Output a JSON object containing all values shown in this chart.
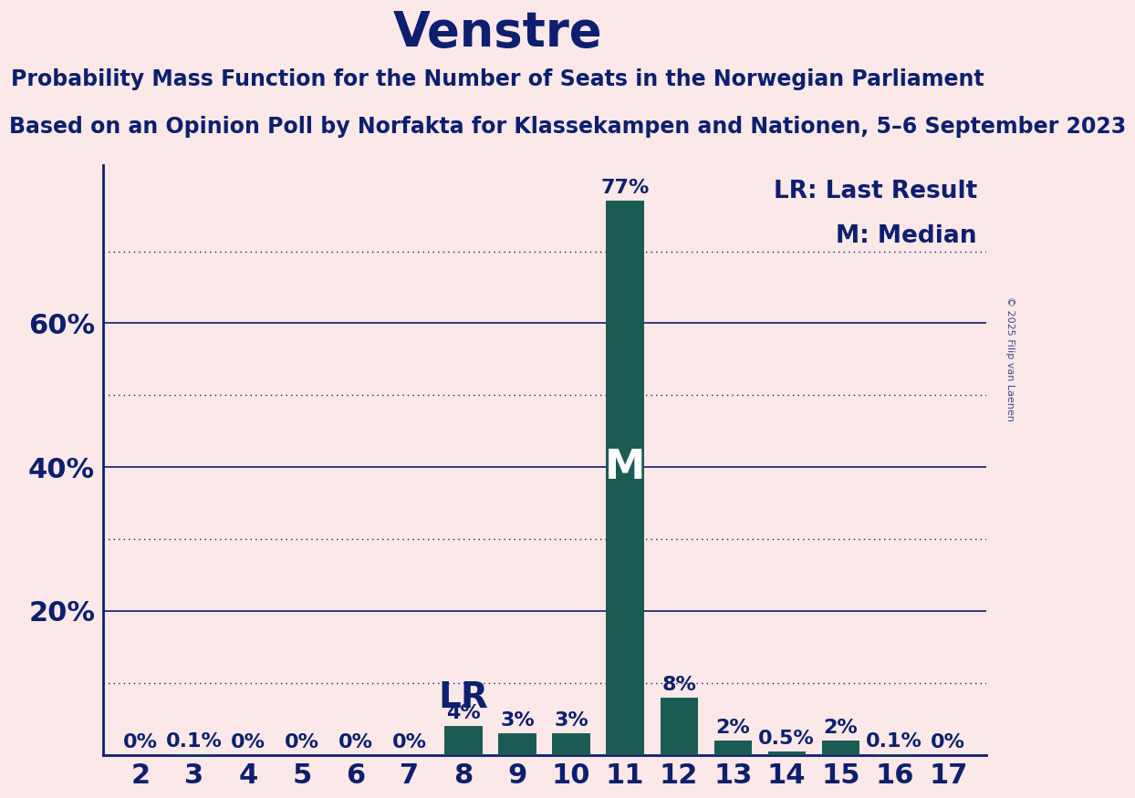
{
  "title": "Venstre",
  "subtitle": "Probability Mass Function for the Number of Seats in the Norwegian Parliament",
  "subsubtitle": "Based on an Opinion Poll by Norfakta for Klassekampen and Nationen, 5–6 September 2023",
  "copyright": "© 2025 Filip van Laenen",
  "seats": [
    2,
    3,
    4,
    5,
    6,
    7,
    8,
    9,
    10,
    11,
    12,
    13,
    14,
    15,
    16,
    17
  ],
  "probabilities": [
    0.0,
    0.1,
    0.0,
    0.0,
    0.0,
    0.0,
    4.0,
    3.0,
    3.0,
    77.0,
    8.0,
    2.0,
    0.5,
    2.0,
    0.1,
    0.0
  ],
  "bar_color": "#1a5c54",
  "background_color": "#fce8e8",
  "text_color": "#0d1f6e",
  "last_result_seat": 8,
  "median_seat": 11,
  "yticks": [
    20,
    40,
    60
  ],
  "ytick_labels": [
    "20%",
    "40%",
    "60%"
  ],
  "dotted_lines": [
    10,
    30,
    50,
    70
  ],
  "solid_lines": [
    20,
    40,
    60
  ],
  "ylim": [
    0,
    82
  ],
  "legend_lr": "LR: Last Result",
  "legend_m": "M: Median",
  "title_fontsize": 38,
  "subtitle_fontsize": 17,
  "subsubtitle_fontsize": 17,
  "axis_fontsize": 22,
  "bar_label_fontsize": 16,
  "annotation_fontsize": 26,
  "lr_annotation_fontsize": 28
}
